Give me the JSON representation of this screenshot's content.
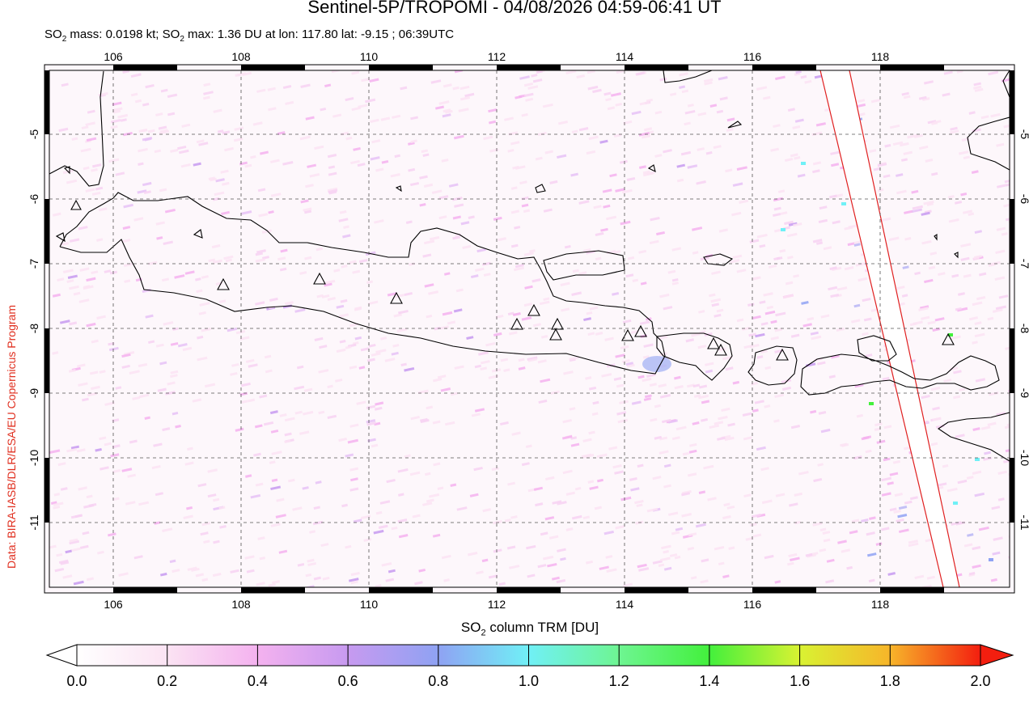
{
  "title": "Sentinel-5P/TROPOMI - 04/08/2026 04:59-06:41 UT",
  "subtitle": {
    "prefix": "SO",
    "sub": "2",
    "text1": " mass: 0.0198 kt; SO",
    "sub2": "2",
    "text2": " max: 1.36 DU at lon: 117.80 lat: -9.15 ; 06:39UTC"
  },
  "credit": "Data: BIRA-IASB/DLR/ESA/EU Copernicus Program",
  "xaxis_title": {
    "pre": "SO",
    "sub": "2",
    "post": " column TRM [DU]"
  },
  "map": {
    "lon_range": [
      105.0,
      120.0
    ],
    "lat_range": [
      -12.0,
      -4.0
    ],
    "lon_ticks": [
      "106",
      "108",
      "110",
      "112",
      "114",
      "116",
      "118"
    ],
    "lat_ticks": [
      "-5",
      "-6",
      "-7",
      "-8",
      "-9",
      "-10",
      "-11"
    ],
    "grid": "dashed",
    "volcano_count": 17
  },
  "colorbar": {
    "ticks": [
      "0.0",
      "0.2",
      "0.4",
      "0.6",
      "0.8",
      "1.0",
      "1.2",
      "1.4",
      "1.6",
      "1.8",
      "2.0"
    ],
    "colors": [
      "#ffffff",
      "#fbe3f3",
      "#f4b2ef",
      "#c79af0",
      "#8fa2f3",
      "#70f0f6",
      "#6ef592",
      "#43f03c",
      "#d9f232",
      "#f7b52a",
      "#f31e0f"
    ]
  }
}
